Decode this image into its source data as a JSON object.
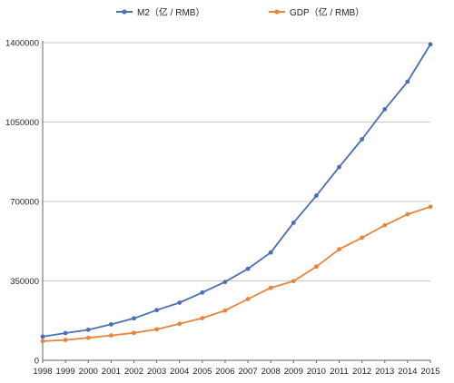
{
  "chart_data": {
    "type": "line",
    "x": [
      "1998",
      "1999",
      "2000",
      "2001",
      "2002",
      "2003",
      "2004",
      "2005",
      "2006",
      "2007",
      "2008",
      "2009",
      "2010",
      "2011",
      "2012",
      "2013",
      "2014",
      "2015"
    ],
    "ylim": [
      0,
      1400000
    ],
    "yticks": [
      "0",
      "350000",
      "700000",
      "1050000",
      "1400000"
    ],
    "grid": true,
    "legend_position": "top-center",
    "series": [
      {
        "name": "M2（亿 / RMB）",
        "color": "#4a6fb5",
        "values": [
          104500,
          119900,
          134600,
          158300,
          185000,
          221200,
          254100,
          298800,
          345600,
          403400,
          475200,
          606200,
          725800,
          851600,
          974100,
          1106500,
          1228400,
          1392300
        ]
      },
      {
        "name": "GDP（亿 / RMB）",
        "color": "#e8843c",
        "values": [
          84400,
          89700,
          99200,
          109700,
          121000,
          136600,
          160700,
          185900,
          219400,
          270100,
          319500,
          349100,
          413000,
          489300,
          540400,
          595200,
          643600,
          676700
        ]
      }
    ]
  }
}
